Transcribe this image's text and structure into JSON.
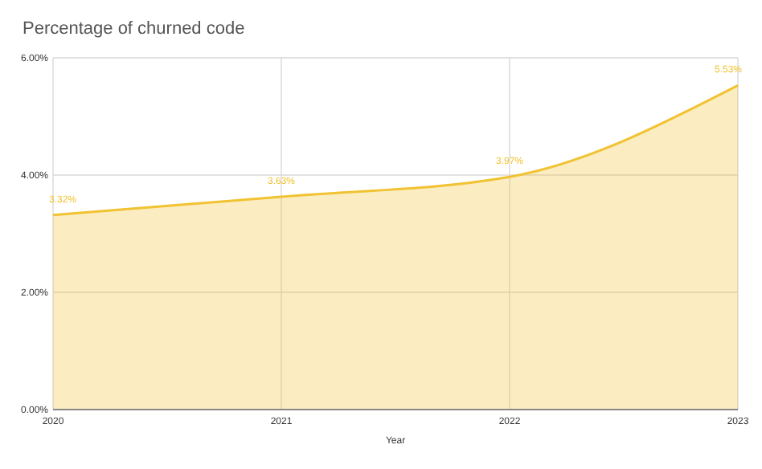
{
  "chart_data": {
    "type": "area",
    "title": "Percentage of churned code",
    "xlabel": "Year",
    "categories": [
      "2020",
      "2021",
      "2022",
      "2023"
    ],
    "series": [
      {
        "color": "#f1c232",
        "values": [
          3.32,
          3.63,
          3.97,
          5.53
        ],
        "value_labels": [
          "3.32%",
          "3.63%",
          "3.97%",
          "5.53%"
        ]
      }
    ],
    "ylim": [
      0,
      6
    ],
    "yticks": [
      {
        "value": 0,
        "label": "0.00%"
      },
      {
        "value": 2,
        "label": "2.00%"
      },
      {
        "value": 4,
        "label": "4.00%"
      },
      {
        "value": 6,
        "label": "6.00%"
      }
    ],
    "grid": true
  }
}
